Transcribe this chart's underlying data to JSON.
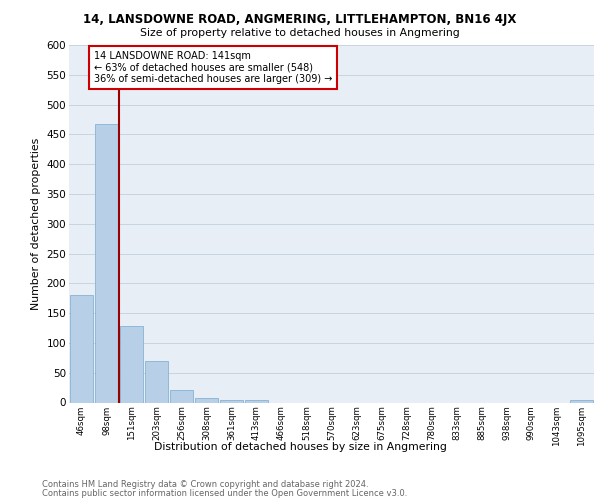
{
  "title": "14, LANSDOWNE ROAD, ANGMERING, LITTLEHAMPTON, BN16 4JX",
  "subtitle": "Size of property relative to detached houses in Angmering",
  "xlabel": "Distribution of detached houses by size in Angmering",
  "ylabel": "Number of detached properties",
  "categories": [
    "46sqm",
    "98sqm",
    "151sqm",
    "203sqm",
    "256sqm",
    "308sqm",
    "361sqm",
    "413sqm",
    "466sqm",
    "518sqm",
    "570sqm",
    "623sqm",
    "675sqm",
    "728sqm",
    "780sqm",
    "833sqm",
    "885sqm",
    "938sqm",
    "990sqm",
    "1043sqm",
    "1095sqm"
  ],
  "all_bar_values": [
    180,
    467,
    128,
    70,
    21,
    8,
    5,
    5,
    0,
    0,
    0,
    0,
    0,
    0,
    0,
    0,
    0,
    0,
    0,
    0,
    5
  ],
  "bar_color": "#b8cfe8",
  "bar_edgecolor": "#7aaad0",
  "bg_color": "#e8eef5",
  "grid_color": "#c8d4e0",
  "annotation_text_line1": "14 LANSDOWNE ROAD: 141sqm",
  "annotation_text_line2": "← 63% of detached houses are smaller (548)",
  "annotation_text_line3": "36% of semi-detached houses are larger (309) →",
  "annotation_box_edgecolor": "#cc0000",
  "property_line_color": "#990000",
  "property_line_x": 1.5,
  "footer_line1": "Contains HM Land Registry data © Crown copyright and database right 2024.",
  "footer_line2": "Contains public sector information licensed under the Open Government Licence v3.0.",
  "ylim_max": 600,
  "yticks": [
    0,
    50,
    100,
    150,
    200,
    250,
    300,
    350,
    400,
    450,
    500,
    550,
    600
  ]
}
